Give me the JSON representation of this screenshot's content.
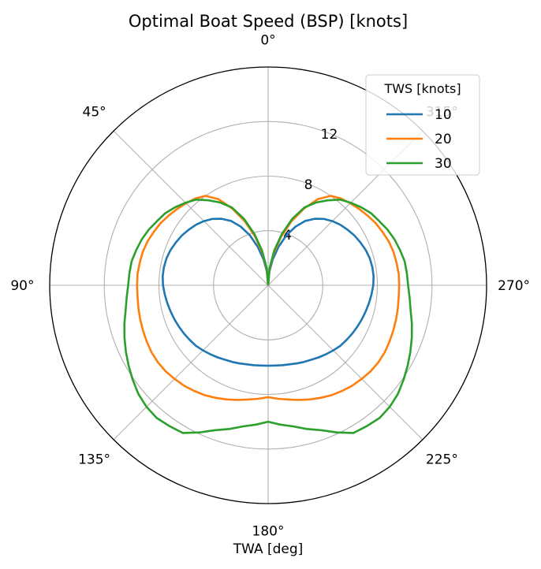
{
  "chart_data": {
    "type": "polar-line",
    "title": "Optimal Boat Speed (BSP) [knots]",
    "xlabel": "TWA [deg]",
    "angle_direction": "counterclockwise",
    "zero_location": "top",
    "theta_ticks": [
      "0°",
      "45°",
      "90°",
      "135°",
      "180°",
      "225°",
      "270°",
      "315°"
    ],
    "r_ticks": [
      4,
      8,
      12
    ],
    "r_tick_labels": [
      "4",
      "8",
      "12"
    ],
    "rlim": [
      0,
      16
    ],
    "grid": true,
    "legend": {
      "title": "TWS [knots]",
      "placement": "top-right"
    },
    "series": [
      {
        "name": "10",
        "color": "#1f77b4",
        "twa_deg": [
          0,
          5,
          10,
          15,
          20,
          25,
          30,
          35,
          40,
          45,
          50,
          55,
          60,
          65,
          70,
          75,
          80,
          85,
          90,
          95,
          100,
          105,
          110,
          115,
          120,
          125,
          130,
          135,
          140,
          145,
          150,
          155,
          160,
          165,
          170,
          175,
          180
        ],
        "bsp": [
          0.0,
          1.0,
          1.9,
          2.9,
          3.9,
          4.75,
          5.45,
          5.95,
          6.35,
          6.65,
          6.9,
          7.1,
          7.3,
          7.45,
          7.6,
          7.7,
          7.75,
          7.75,
          7.7,
          7.6,
          7.5,
          7.4,
          7.3,
          7.2,
          7.1,
          7.0,
          6.9,
          6.75,
          6.6,
          6.45,
          6.3,
          6.2,
          6.1,
          6.0,
          5.95,
          5.9,
          5.9
        ]
      },
      {
        "name": "20",
        "color": "#ff7f0e",
        "twa_deg": [
          0,
          5,
          10,
          15,
          20,
          25,
          30,
          35,
          40,
          45,
          50,
          55,
          60,
          65,
          70,
          75,
          80,
          85,
          90,
          95,
          100,
          105,
          110,
          115,
          120,
          125,
          130,
          135,
          140,
          145,
          150,
          155,
          160,
          165,
          170,
          175,
          180
        ],
        "bsp": [
          0.0,
          1.2,
          2.4,
          3.7,
          5.0,
          6.2,
          7.3,
          8.0,
          8.3,
          8.5,
          8.7,
          8.9,
          9.1,
          9.25,
          9.4,
          9.5,
          9.55,
          9.6,
          9.6,
          9.6,
          9.65,
          9.7,
          9.75,
          9.8,
          9.85,
          9.85,
          9.8,
          9.7,
          9.6,
          9.45,
          9.3,
          9.1,
          8.9,
          8.7,
          8.5,
          8.35,
          8.2
        ]
      },
      {
        "name": "30",
        "color": "#2ca02c",
        "twa_deg": [
          0,
          5,
          10,
          15,
          20,
          25,
          30,
          35,
          40,
          45,
          50,
          55,
          60,
          65,
          70,
          75,
          80,
          85,
          90,
          95,
          100,
          105,
          110,
          115,
          120,
          125,
          130,
          135,
          140,
          145,
          150,
          155,
          160,
          165,
          170,
          175,
          180
        ],
        "bsp": [
          0.0,
          1.3,
          2.6,
          3.9,
          5.2,
          6.3,
          7.0,
          7.6,
          8.2,
          8.55,
          8.9,
          9.2,
          9.4,
          9.65,
          9.85,
          10.0,
          10.15,
          10.2,
          10.25,
          10.4,
          10.6,
          10.9,
          11.2,
          11.5,
          11.8,
          12.1,
          12.4,
          12.6,
          12.7,
          12.6,
          12.5,
          11.9,
          11.3,
          10.9,
          10.5,
          10.25,
          10.0
        ]
      }
    ]
  }
}
